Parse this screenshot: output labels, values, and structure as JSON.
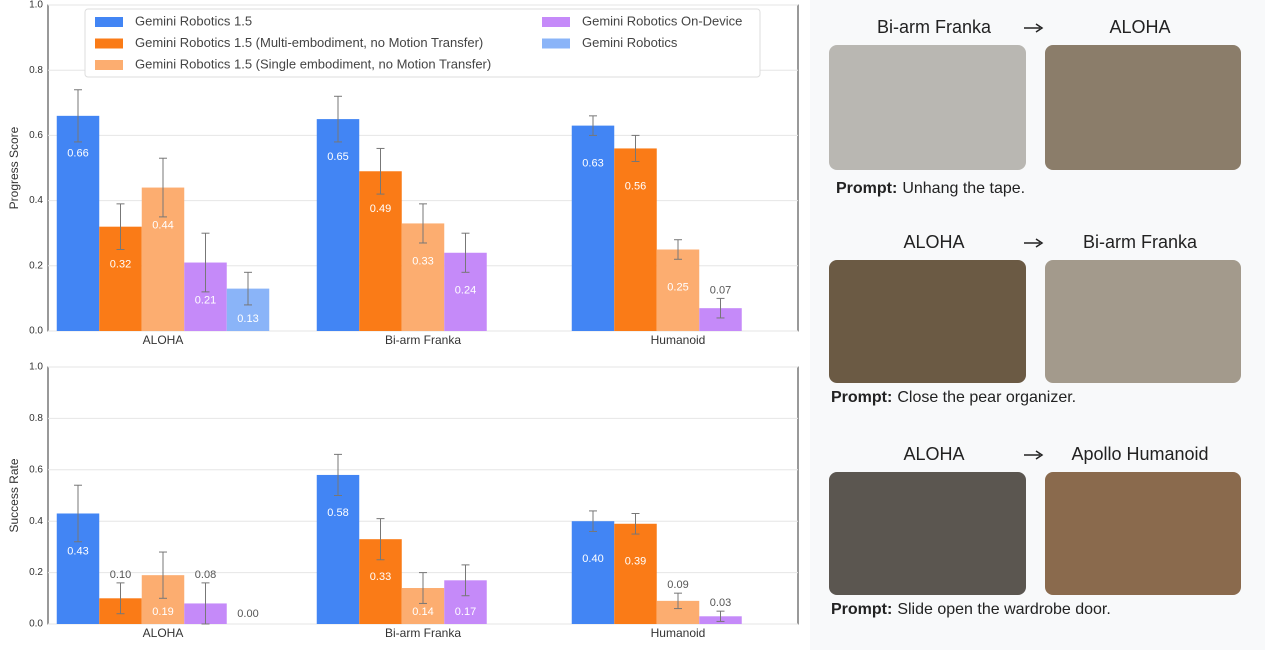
{
  "chart_data": [
    {
      "type": "bar",
      "y_label": "Progress Score",
      "categories": [
        "ALOHA",
        "Bi-arm Franka",
        "Humanoid"
      ],
      "ylim": [
        0,
        1
      ],
      "yticks": [
        {
          "value": 0,
          "label": "0.0"
        },
        0.2,
        0.4,
        0.6,
        0.8,
        {
          "value": 1,
          "label": "1.0"
        }
      ],
      "grid": true,
      "legend": "top",
      "series": [
        {
          "name": "Gemini Robotics 1.5",
          "color": "#4285f4",
          "values": [
            0.66,
            0.65,
            0.63
          ],
          "errors": [
            0.08,
            0.07,
            0.03
          ]
        },
        {
          "name": "Gemini Robotics 1.5 (Multi-embodiment, no Motion Transfer)",
          "color": "#fa7b17",
          "values": [
            0.32,
            0.49,
            0.56
          ],
          "errors": [
            0.07,
            0.07,
            0.04
          ]
        },
        {
          "name": "Gemini Robotics 1.5 (Single embodiment, no Motion Transfer)",
          "color": "#fcad70",
          "values": [
            0.44,
            0.33,
            0.25
          ],
          "errors": [
            0.09,
            0.06,
            0.03
          ]
        },
        {
          "name": "Gemini Robotics On-Device",
          "color": "#c58af9",
          "values": [
            0.21,
            0.24,
            0.07
          ],
          "errors": [
            0.09,
            0.06,
            0.03
          ]
        },
        {
          "name": "Gemini Robotics",
          "color": "#8ab4f8",
          "values": [
            0.13,
            null,
            null
          ],
          "errors": [
            0.05,
            null,
            null
          ]
        }
      ]
    },
    {
      "type": "bar",
      "y_label": "Success Rate",
      "categories": [
        "ALOHA",
        "Bi-arm Franka",
        "Humanoid"
      ],
      "ylim": [
        0,
        1
      ],
      "yticks": [
        {
          "value": 0,
          "label": "0.0"
        },
        0.2,
        0.4,
        0.6,
        0.8,
        {
          "value": 1,
          "label": "1.0"
        }
      ],
      "grid": true,
      "series": [
        {
          "color": "#4285f4",
          "values": [
            0.43,
            0.58,
            0.4
          ],
          "value_labels": [
            "0.43",
            "0.58",
            "0.40"
          ],
          "errors": [
            0.11,
            0.08,
            0.04
          ]
        },
        {
          "color": "#fa7b17",
          "values": [
            0.1,
            0.33,
            0.39
          ],
          "value_labels": [
            "0.10",
            "0.33",
            "0.39"
          ],
          "errors": [
            0.06,
            0.08,
            0.04
          ]
        },
        {
          "color": "#fcad70",
          "values": [
            0.19,
            0.14,
            0.09
          ],
          "errors": [
            0.09,
            0.06,
            0.03
          ]
        },
        {
          "color": "#c58af9",
          "values": [
            0.08,
            0.17,
            0.03
          ],
          "errors": [
            0.08,
            0.06,
            0.02
          ]
        },
        {
          "color": "#8ab4f8",
          "values": [
            0,
            null,
            null
          ],
          "value_labels": [
            "0.00",
            null,
            null
          ],
          "errors": [
            null,
            null,
            null
          ]
        }
      ]
    }
  ],
  "transfers": [
    {
      "from": "Bi-arm Franka",
      "to": "ALOHA",
      "prompt_label": "Prompt:",
      "prompt": "Unhang the tape."
    },
    {
      "from": "ALOHA",
      "to": "Bi-arm Franka",
      "prompt_label": "Prompt:",
      "prompt": "Close the pear organizer."
    },
    {
      "from": "ALOHA",
      "to": "Apollo Humanoid",
      "prompt_label": "Prompt:",
      "prompt": "Slide open the wardrobe door."
    }
  ]
}
